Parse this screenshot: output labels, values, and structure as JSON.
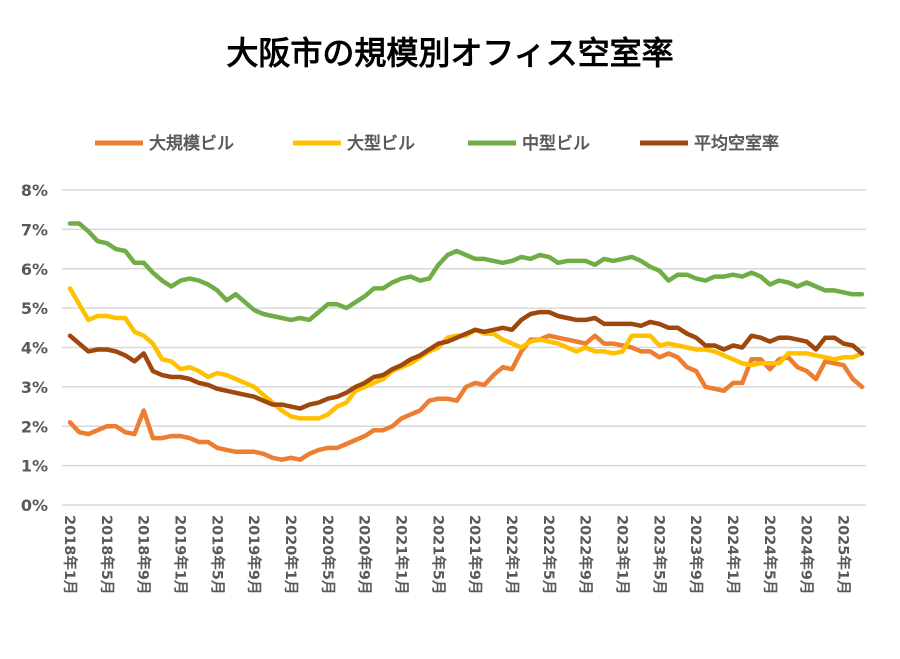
{
  "chart_data": {
    "type": "line",
    "title": "大阪市の規模別オフィス空室率",
    "xlabel": "",
    "ylabel": "",
    "ylim": [
      0,
      8
    ],
    "yticks": [
      "0%",
      "1%",
      "2%",
      "3%",
      "4%",
      "5%",
      "6%",
      "7%",
      "8%"
    ],
    "grid": true,
    "legend_position": "top",
    "x_period": "monthly, 2018年1月 to 2025年3月",
    "x_tick_labels": [
      "2018年1月",
      "2018年5月",
      "2018年9月",
      "2019年1月",
      "2019年5月",
      "2019年9月",
      "2020年1月",
      "2020年5月",
      "2020年9月",
      "2021年1月",
      "2021年5月",
      "2021年9月",
      "2022年1月",
      "2022年5月",
      "2022年9月",
      "2023年1月",
      "2023年5月",
      "2023年9月",
      "2024年1月",
      "2024年5月",
      "2024年9月",
      "2025年1月"
    ],
    "series": [
      {
        "name": "大規模ビル",
        "color": "#ED7D31",
        "values": [
          2.1,
          1.85,
          1.8,
          1.9,
          2.0,
          2.0,
          1.85,
          1.8,
          2.4,
          1.7,
          1.7,
          1.75,
          1.75,
          1.7,
          1.6,
          1.6,
          1.45,
          1.4,
          1.35,
          1.35,
          1.35,
          1.3,
          1.2,
          1.15,
          1.2,
          1.15,
          1.3,
          1.4,
          1.45,
          1.45,
          1.55,
          1.65,
          1.75,
          1.9,
          1.9,
          2.0,
          2.2,
          2.3,
          2.4,
          2.65,
          2.7,
          2.7,
          2.65,
          3.0,
          3.1,
          3.05,
          3.3,
          3.5,
          3.45,
          3.9,
          4.2,
          4.2,
          4.3,
          4.25,
          4.2,
          4.15,
          4.1,
          4.3,
          4.1,
          4.1,
          4.05,
          4.0,
          3.9,
          3.9,
          3.75,
          3.85,
          3.75,
          3.5,
          3.4,
          3.0,
          2.95,
          2.9,
          3.1,
          3.1,
          3.7,
          3.7,
          3.45,
          3.7,
          3.75,
          3.5,
          3.4,
          3.2,
          3.65,
          3.6,
          3.55,
          3.2,
          3.0
        ]
      },
      {
        "name": "大型ビル",
        "color": "#FFC000",
        "values": [
          5.5,
          5.1,
          4.7,
          4.8,
          4.8,
          4.75,
          4.75,
          4.4,
          4.3,
          4.1,
          3.7,
          3.65,
          3.45,
          3.5,
          3.4,
          3.25,
          3.35,
          3.3,
          3.2,
          3.1,
          3.0,
          2.8,
          2.6,
          2.4,
          2.25,
          2.2,
          2.2,
          2.2,
          2.3,
          2.5,
          2.6,
          2.9,
          3.0,
          3.1,
          3.2,
          3.4,
          3.5,
          3.6,
          3.75,
          3.9,
          4.0,
          4.25,
          4.3,
          4.3,
          4.45,
          4.35,
          4.35,
          4.2,
          4.1,
          4.0,
          4.15,
          4.2,
          4.15,
          4.1,
          4.0,
          3.9,
          4.0,
          3.9,
          3.9,
          3.85,
          3.9,
          4.3,
          4.3,
          4.3,
          4.05,
          4.1,
          4.05,
          4.0,
          3.95,
          3.95,
          3.9,
          3.8,
          3.7,
          3.6,
          3.55,
          3.6,
          3.6,
          3.6,
          3.85,
          3.85,
          3.85,
          3.8,
          3.75,
          3.7,
          3.75,
          3.75,
          3.85
        ]
      },
      {
        "name": "中型ビル",
        "color": "#70AD47",
        "values": [
          7.15,
          7.15,
          6.95,
          6.7,
          6.65,
          6.5,
          6.45,
          6.15,
          6.15,
          5.9,
          5.7,
          5.55,
          5.7,
          5.75,
          5.7,
          5.6,
          5.45,
          5.2,
          5.35,
          5.15,
          4.95,
          4.85,
          4.8,
          4.75,
          4.7,
          4.75,
          4.7,
          4.9,
          5.1,
          5.1,
          5.0,
          5.15,
          5.3,
          5.5,
          5.5,
          5.65,
          5.75,
          5.8,
          5.7,
          5.75,
          6.1,
          6.35,
          6.45,
          6.35,
          6.25,
          6.25,
          6.2,
          6.15,
          6.2,
          6.3,
          6.25,
          6.35,
          6.3,
          6.15,
          6.2,
          6.2,
          6.2,
          6.1,
          6.25,
          6.2,
          6.25,
          6.3,
          6.2,
          6.05,
          5.95,
          5.7,
          5.85,
          5.85,
          5.75,
          5.7,
          5.8,
          5.8,
          5.85,
          5.8,
          5.9,
          5.8,
          5.6,
          5.7,
          5.65,
          5.55,
          5.65,
          5.55,
          5.45,
          5.45,
          5.4,
          5.35,
          5.35
        ]
      },
      {
        "name": "平均空室率",
        "color": "#9E480E",
        "values": [
          4.3,
          4.1,
          3.9,
          3.95,
          3.95,
          3.9,
          3.8,
          3.65,
          3.85,
          3.4,
          3.3,
          3.25,
          3.25,
          3.2,
          3.1,
          3.05,
          2.95,
          2.9,
          2.85,
          2.8,
          2.75,
          2.65,
          2.55,
          2.55,
          2.5,
          2.45,
          2.55,
          2.6,
          2.7,
          2.75,
          2.85,
          3.0,
          3.1,
          3.25,
          3.3,
          3.45,
          3.55,
          3.7,
          3.8,
          3.95,
          4.1,
          4.15,
          4.25,
          4.35,
          4.45,
          4.4,
          4.45,
          4.5,
          4.45,
          4.7,
          4.85,
          4.9,
          4.9,
          4.8,
          4.75,
          4.7,
          4.7,
          4.75,
          4.6,
          4.6,
          4.6,
          4.6,
          4.55,
          4.65,
          4.6,
          4.5,
          4.5,
          4.35,
          4.25,
          4.05,
          4.05,
          3.95,
          4.05,
          4.0,
          4.3,
          4.25,
          4.15,
          4.25,
          4.25,
          4.2,
          4.15,
          3.95,
          4.25,
          4.25,
          4.1,
          4.05,
          3.85
        ]
      }
    ]
  }
}
